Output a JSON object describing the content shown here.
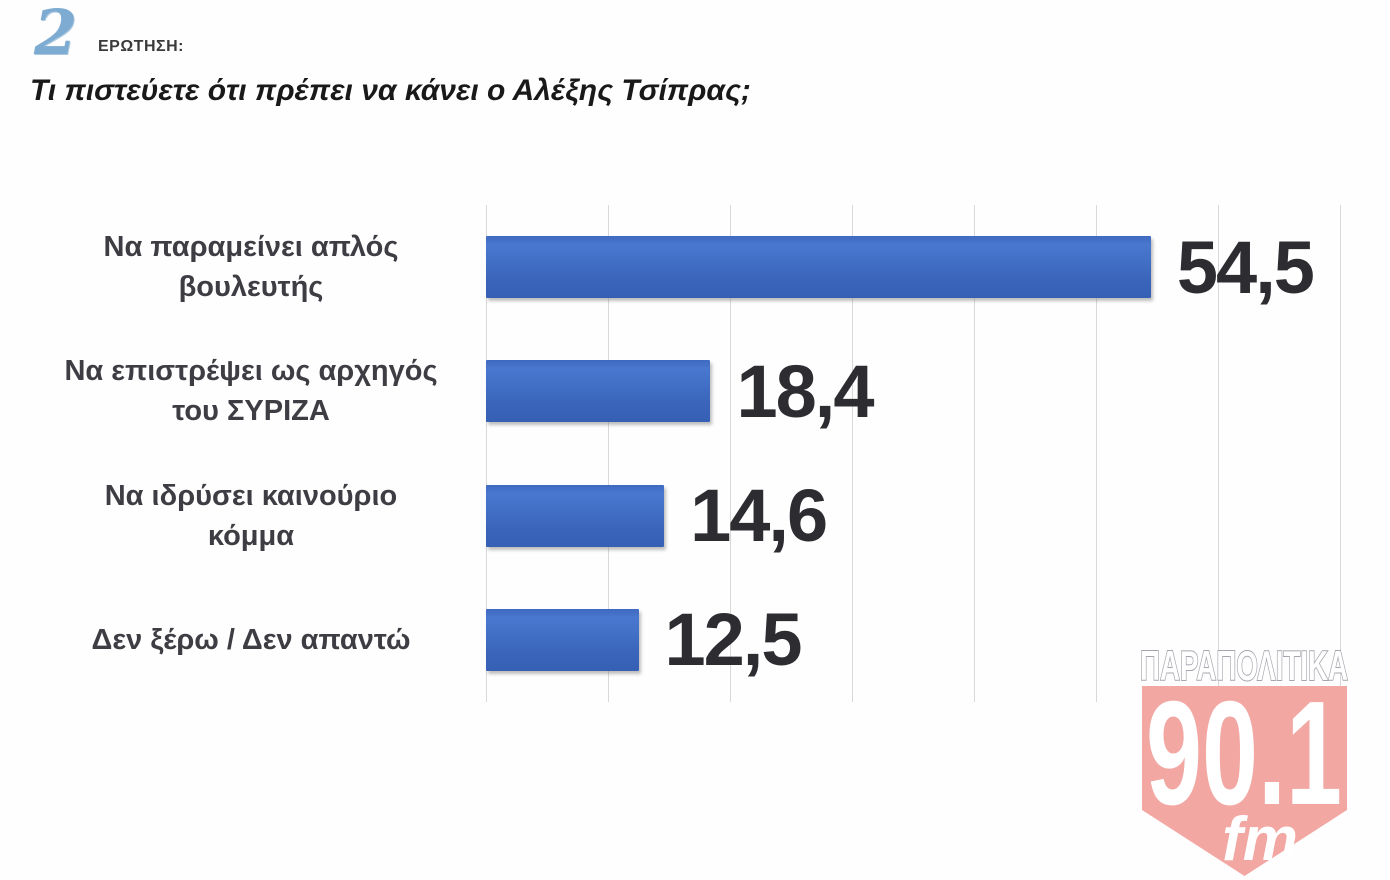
{
  "header": {
    "question_number": "2",
    "question_label": "ΕΡΩΤΗΣΗ:",
    "title": "Τι πιστεύετε ότι πρέπει να κάνει ο Αλέξης Τσίπρας;"
  },
  "chart_data": {
    "type": "bar",
    "orientation": "horizontal",
    "categories": [
      "Να παραμείνει απλός βουλευτής",
      "Να επιστρέψει ως αρχηγός του ΣΥΡΙΖΑ",
      "Να ιδρύσει καινούριο κόμμα",
      "Δεν ξέρω / Δεν απαντώ"
    ],
    "category_lines": [
      [
        "Να παραμείνει απλός",
        "βουλευτής"
      ],
      [
        "Να επιστρέψει ως αρχηγός",
        "του ΣΥΡΙΖΑ"
      ],
      [
        "Να ιδρύσει καινούριο",
        "κόμμα"
      ],
      [
        "Δεν ξέρω / Δεν απαντώ"
      ]
    ],
    "values": [
      54.5,
      18.4,
      14.6,
      12.5
    ],
    "value_labels": [
      "54,5",
      "18,4",
      "14,6",
      "12,5"
    ],
    "title": "Τι πιστεύετε ότι πρέπει να κάνει ο Αλέξης Τσίπρας;",
    "xlabel": "",
    "ylabel": "",
    "xlim": [
      0,
      70
    ],
    "gridline_interval": 10,
    "grid": true,
    "legend": false,
    "bar_color": "#3f68be"
  },
  "logo": {
    "brand": "ΠΑΡΑΠΟΛΙΤΙΚΑ",
    "frequency": "90.1",
    "band": "fm",
    "shield_color": "#f2a7a2",
    "outline_color": "#a5a5af"
  }
}
